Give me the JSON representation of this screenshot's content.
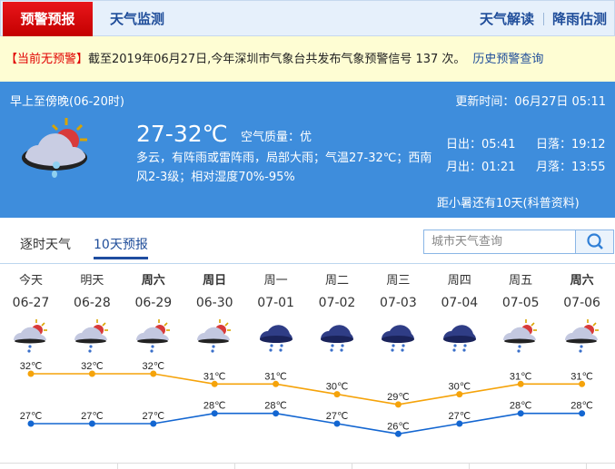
{
  "nav": {
    "active": "预警预报",
    "monitor": "天气监测",
    "interpret": "天气解读",
    "rain": "降雨估测"
  },
  "alert": {
    "status": "【当前无预警】",
    "text": "截至2019年06月27日,今年深圳市气象台共发布气象预警信号 137 次。",
    "history_link": "历史预警查询"
  },
  "today": {
    "period": "早上至傍晚(06-20时)",
    "update": "更新时间：06月27日 05:11",
    "temp": "27-32℃",
    "aqi": "空气质量：优",
    "desc": "多云，有阵雨或雷阵雨，局部大雨；气温27-32℃；西南风2-3级；相对湿度70%-95%",
    "sunrise": "日出：05:41",
    "sunset": "日落：19:12",
    "moonrise": "月出：01:21",
    "moonset": "月落：13:55",
    "solar_term": "距小暑还有10天(科普资料)",
    "icon": "cloudy-sun-rain-icon"
  },
  "tabs": {
    "hourly": "逐时天气",
    "ten_day": "10天预报"
  },
  "search": {
    "placeholder": "城市天气查询"
  },
  "colors": {
    "high": "#f5a30a",
    "low": "#1366d1",
    "banner": "#3e8ddc",
    "active_tab": "#d40a0e"
  },
  "forecast": [
    {
      "week": "今天",
      "date": "06-27",
      "icon": "partly-cloudy-rain",
      "high": 32,
      "low": 27,
      "bold": false
    },
    {
      "week": "明天",
      "date": "06-28",
      "icon": "partly-cloudy-rain",
      "high": 32,
      "low": 27,
      "bold": false
    },
    {
      "week": "周六",
      "date": "06-29",
      "icon": "partly-cloudy-rain",
      "high": 32,
      "low": 27,
      "bold": true
    },
    {
      "week": "周日",
      "date": "06-30",
      "icon": "partly-cloudy-rain",
      "high": 31,
      "low": 28,
      "bold": true
    },
    {
      "week": "周一",
      "date": "07-01",
      "icon": "rain",
      "high": 31,
      "low": 28,
      "bold": false
    },
    {
      "week": "周二",
      "date": "07-02",
      "icon": "rain",
      "high": 30,
      "low": 27,
      "bold": false
    },
    {
      "week": "周三",
      "date": "07-03",
      "icon": "rain",
      "high": 29,
      "low": 26,
      "bold": false
    },
    {
      "week": "周四",
      "date": "07-04",
      "icon": "rain",
      "high": 30,
      "low": 27,
      "bold": false
    },
    {
      "week": "周五",
      "date": "07-05",
      "icon": "partly-cloudy-rain",
      "high": 31,
      "low": 28,
      "bold": false
    },
    {
      "week": "周六",
      "date": "07-06",
      "icon": "partly-cloudy-rain",
      "high": 31,
      "low": 28,
      "bold": true
    }
  ],
  "unit": "℃"
}
